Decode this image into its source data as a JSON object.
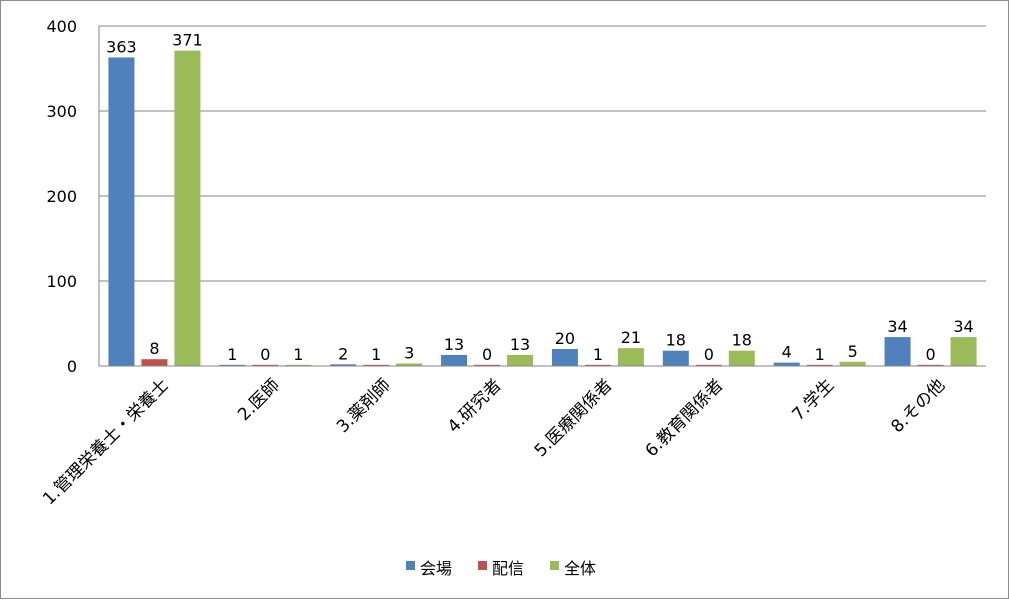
{
  "chart_data": {
    "type": "bar",
    "categories": [
      "1.管理栄養士・栄養士",
      "2.医師",
      "3.薬剤師",
      "4.研究者",
      "5.医療関係者",
      "6.教育関係者",
      "7.学生",
      "8.その他"
    ],
    "series": [
      {
        "name": "会場",
        "color": "#4f81bd",
        "values": [
          363,
          1,
          2,
          13,
          20,
          18,
          4,
          34
        ]
      },
      {
        "name": "配信",
        "color": "#c0504d",
        "values": [
          8,
          0,
          1,
          0,
          1,
          0,
          1,
          0
        ]
      },
      {
        "name": "全体",
        "color": "#9bbb59",
        "values": [
          371,
          1,
          3,
          13,
          21,
          18,
          5,
          34
        ]
      }
    ],
    "yticks": [
      "0",
      "100",
      "200",
      "300",
      "400"
    ],
    "ylim": [
      0,
      400
    ],
    "grid": true,
    "legend": "bottom",
    "data_labels": true
  }
}
